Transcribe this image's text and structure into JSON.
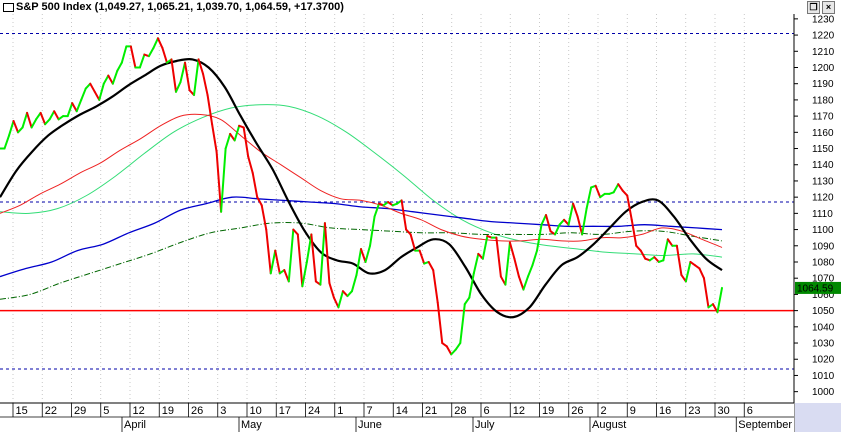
{
  "window": {
    "title": "S&P 500 Index (1,049.27, 1,065.21, 1,039.70, 1,064.59, +17.3700)",
    "controls": [
      "❐",
      "×"
    ]
  },
  "colors": {
    "up": "#00ee00",
    "down": "#ee0000",
    "ma_black": "#000000",
    "ma_red": "#ee2222",
    "ma_blue": "#0000cc",
    "ma_lightgreen": "#33dd77",
    "ma_darkgreen": "#006600",
    "grid": "#bbbbbb",
    "hline_blue": "#0000aa",
    "hline_red": "#ff0000",
    "price_label_bg": "#008800"
  },
  "chart_data": {
    "type": "line",
    "ylim": [
      993,
      1233
    ],
    "yticks": [
      1000,
      1010,
      1020,
      1030,
      1040,
      1050,
      1060,
      1070,
      1080,
      1090,
      1100,
      1110,
      1120,
      1130,
      1140,
      1150,
      1160,
      1170,
      1180,
      1190,
      1200,
      1210,
      1220,
      1230
    ],
    "x_tick_labels": [
      "15",
      "22",
      "29",
      "5",
      "12",
      "19",
      "26",
      "3",
      "10",
      "17",
      "24",
      "1",
      "7",
      "14",
      "21",
      "28",
      "6",
      "12",
      "19",
      "26",
      "2",
      "9",
      "16",
      "23",
      "30",
      "6"
    ],
    "months": [
      "April",
      "May",
      "June",
      "July",
      "August",
      "September"
    ],
    "last_price_label": "1064.59",
    "horizontal_lines": [
      {
        "value": 1221,
        "style": "dashed",
        "color": "blue"
      },
      {
        "value": 1117,
        "style": "dashed",
        "color": "blue"
      },
      {
        "value": 1014,
        "style": "dashed",
        "color": "blue"
      },
      {
        "value": 1050,
        "style": "solid",
        "color": "red"
      }
    ],
    "price_close": [
      1150,
      1150,
      1158,
      1167,
      1160,
      1163,
      1172,
      1163,
      1168,
      1172,
      1165,
      1168,
      1173,
      1168,
      1170,
      1170,
      1178,
      1173,
      1180,
      1187,
      1190,
      1185,
      1180,
      1190,
      1195,
      1190,
      1198,
      1203,
      1213,
      1213,
      1200,
      1200,
      1208,
      1207,
      1212,
      1218,
      1212,
      1203,
      1205,
      1185,
      1191,
      1203,
      1186,
      1183,
      1205,
      1196,
      1183,
      1165,
      1148,
      1111,
      1150,
      1159,
      1155,
      1164,
      1163,
      1145,
      1135,
      1120,
      1115,
      1100,
      1073,
      1087,
      1073,
      1075,
      1068,
      1100,
      1097,
      1065,
      1080,
      1097,
      1068,
      1066,
      1104,
      1067,
      1058,
      1052,
      1062,
      1059,
      1062,
      1072,
      1088,
      1080,
      1090,
      1108,
      1116,
      1115,
      1117,
      1115,
      1116,
      1118,
      1100,
      1097,
      1087,
      1087,
      1079,
      1080,
      1075,
      1055,
      1030,
      1028,
      1023,
      1026,
      1030,
      1054,
      1058,
      1073,
      1085,
      1082,
      1096,
      1095,
      1095,
      1071,
      1066,
      1092,
      1082,
      1071,
      1063,
      1071,
      1078,
      1087,
      1103,
      1109,
      1099,
      1097,
      1103,
      1106,
      1103,
      1116,
      1108,
      1097,
      1113,
      1126,
      1127,
      1120,
      1122,
      1122,
      1123,
      1128,
      1124,
      1121,
      1106,
      1090,
      1087,
      1082,
      1081,
      1083,
      1080,
      1081,
      1094,
      1090,
      1090,
      1072,
      1068,
      1080,
      1078,
      1076,
      1070,
      1052,
      1054,
      1049,
      1064
    ],
    "series": [
      {
        "name": "",
        "values": [
          1120,
          1136,
          1148,
          1158,
          1165,
          1171,
          1176,
          1182,
          1189,
          1195,
          1201,
          1204,
          1205,
          1200,
          1188,
          1170,
          1153,
          1137,
          1117,
          1099,
          1086,
          1081,
          1079,
          1073,
          1075,
          1083,
          1089,
          1094,
          1091,
          1077,
          1060,
          1049,
          1046,
          1052,
          1066,
          1078,
          1083,
          1091,
          1101,
          1111,
          1117,
          1118,
          1108,
          1094,
          1082,
          1075
        ]
      },
      {
        "name": "",
        "values": [
          1110,
          1115,
          1122,
          1128,
          1135,
          1141,
          1149,
          1156,
          1164,
          1170,
          1171,
          1168,
          1158,
          1148,
          1140,
          1132,
          1124,
          1119,
          1118,
          1115,
          1110,
          1106,
          1100,
          1096,
          1094,
          1093,
          1093,
          1094,
          1093,
          1093,
          1095,
          1095,
          1097,
          1101,
          1099,
          1094,
          1089
        ]
      },
      {
        "name": "",
        "values": [
          1071,
          1076,
          1080,
          1087,
          1091,
          1098,
          1104,
          1112,
          1116,
          1120,
          1119,
          1118,
          1117,
          1116,
          1114,
          1113,
          1111,
          1109,
          1107,
          1105,
          1104,
          1103,
          1102,
          1102,
          1102,
          1103,
          1102,
          1101,
          1100
        ]
      },
      {
        "name": "",
        "values": [
          1111,
          1110,
          1113,
          1121,
          1133,
          1147,
          1160,
          1169,
          1175,
          1177,
          1176,
          1170,
          1160,
          1147,
          1133,
          1118,
          1106,
          1098,
          1093,
          1090,
          1088,
          1086,
          1085,
          1084,
          1085,
          1083
        ]
      },
      {
        "name": "",
        "values": [
          1057,
          1060,
          1067,
          1073,
          1079,
          1085,
          1092,
          1098,
          1101,
          1104,
          1104,
          1101,
          1100,
          1099,
          1098,
          1098,
          1097,
          1097,
          1097,
          1098,
          1097,
          1099,
          1099,
          1096,
          1093
        ]
      }
    ]
  }
}
